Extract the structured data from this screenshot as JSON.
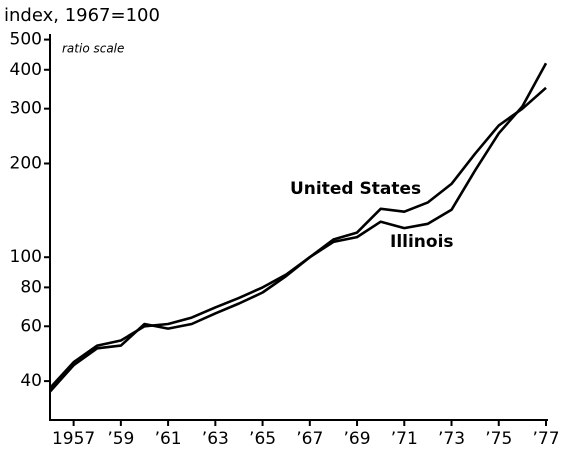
{
  "chart_data": {
    "type": "line",
    "title": "index, 1967=100",
    "subtitle": "ratio scale",
    "log_scale_y": true,
    "x": [
      1956,
      1957,
      1958,
      1959,
      1960,
      1961,
      1962,
      1963,
      1964,
      1965,
      1966,
      1967,
      1968,
      1969,
      1970,
      1971,
      1972,
      1973,
      1974,
      1975,
      1976,
      1977
    ],
    "series": [
      {
        "name": "United States",
        "color": "#000000",
        "values": [
          38,
          46,
          52,
          54,
          60,
          61,
          64,
          69,
          74,
          80,
          88,
          100,
          114,
          120,
          143,
          140,
          150,
          172,
          215,
          265,
          300,
          350
        ]
      },
      {
        "name": "Illinois",
        "color": "#000000",
        "values": [
          37,
          45,
          51,
          52,
          61,
          59,
          61,
          66,
          71,
          77,
          87,
          100,
          112,
          116,
          130,
          124,
          128,
          142,
          190,
          250,
          305,
          420
        ]
      }
    ],
    "xlim": [
      1956,
      1977
    ],
    "xticks": [
      1957,
      {
        "value": 1959,
        "label": "’59"
      },
      {
        "value": 1961,
        "label": "’61"
      },
      {
        "value": 1963,
        "label": "’63"
      },
      {
        "value": 1965,
        "label": "’65"
      },
      {
        "value": 1967,
        "label": "’67"
      },
      {
        "value": 1969,
        "label": "’69"
      },
      {
        "value": 1971,
        "label": "’71"
      },
      {
        "value": 1973,
        "label": "’73"
      },
      {
        "value": 1975,
        "label": "’75"
      },
      {
        "value": 1977,
        "label": "’77"
      }
    ],
    "ylim": [
      30,
      525
    ],
    "yticks": [
      40,
      60,
      80,
      100,
      200,
      300,
      400,
      500
    ]
  }
}
